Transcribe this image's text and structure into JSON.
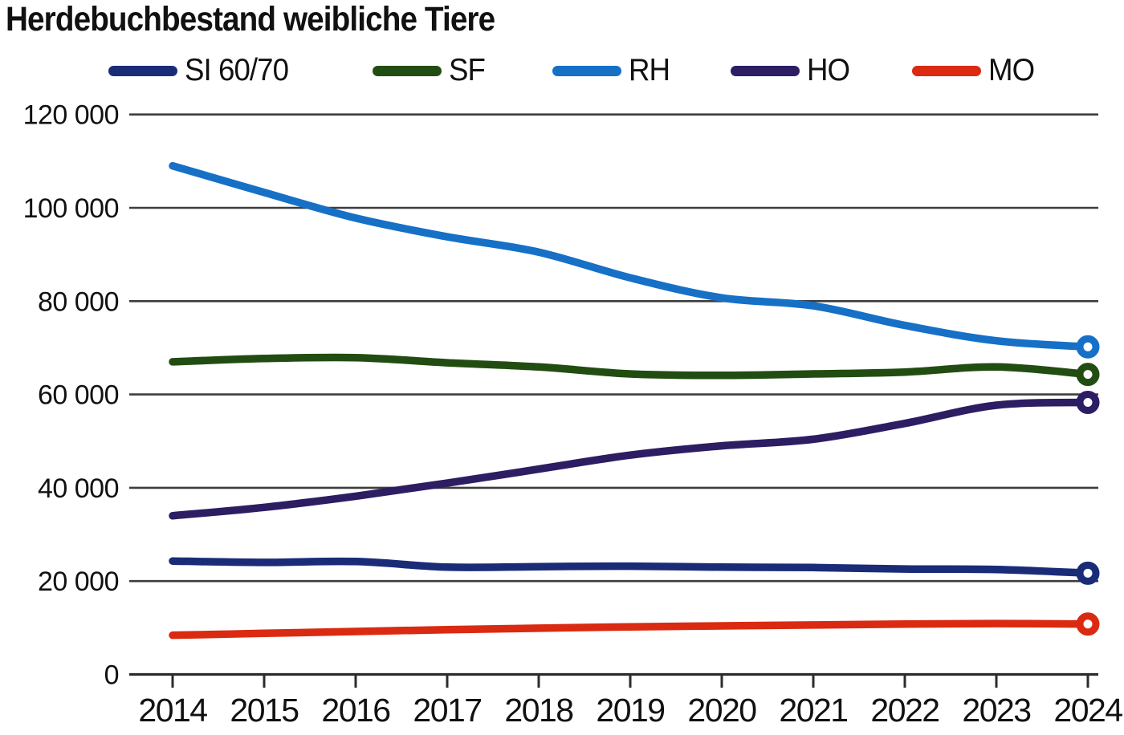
{
  "title": "Herdebuchbestand weibliche Tiere",
  "chart_data": {
    "type": "line",
    "title": "Herdebuchbestand weibliche Tiere",
    "x": [
      2014,
      2015,
      2016,
      2017,
      2018,
      2019,
      2020,
      2021,
      2022,
      2023,
      2024
    ],
    "xtick_labels": [
      "2014",
      "2015",
      "2016",
      "2017",
      "2018",
      "2019",
      "2020",
      "2021",
      "2022",
      "2023",
      "2024"
    ],
    "series": [
      {
        "name": "SI 60/70",
        "color": "#1a2c78",
        "values": [
          24300,
          24000,
          24200,
          23000,
          23100,
          23200,
          23000,
          22900,
          22600,
          22500,
          21700
        ]
      },
      {
        "name": "SF",
        "color": "#224d12",
        "values": [
          67000,
          67700,
          67900,
          66800,
          65900,
          64400,
          64100,
          64400,
          64800,
          65900,
          64300
        ]
      },
      {
        "name": "RH",
        "color": "#1670c6",
        "values": [
          109000,
          103300,
          97800,
          93800,
          90500,
          85000,
          80700,
          79000,
          74800,
          71500,
          70200
        ]
      },
      {
        "name": "HO",
        "color": "#2d1d62",
        "values": [
          34000,
          35800,
          38200,
          41000,
          44000,
          47000,
          49000,
          50400,
          53800,
          57700,
          58300
        ]
      },
      {
        "name": "MO",
        "color": "#da2a12",
        "values": [
          8400,
          8800,
          9200,
          9600,
          9900,
          10200,
          10400,
          10600,
          10800,
          10900,
          10800
        ]
      }
    ],
    "ylim": [
      0,
      120000
    ],
    "ytick_step": 20000,
    "ytick_labels": [
      "0",
      "20 000",
      "40 000",
      "60 000",
      "80 000",
      "100 000",
      "120 000"
    ],
    "xlabel": "",
    "ylabel": "",
    "grid": "horizontal",
    "legend_position": "top",
    "end_markers": "open circle on last point of each series",
    "grid_color": "#3d3d3d",
    "axis_color": "#2c2c2c"
  }
}
